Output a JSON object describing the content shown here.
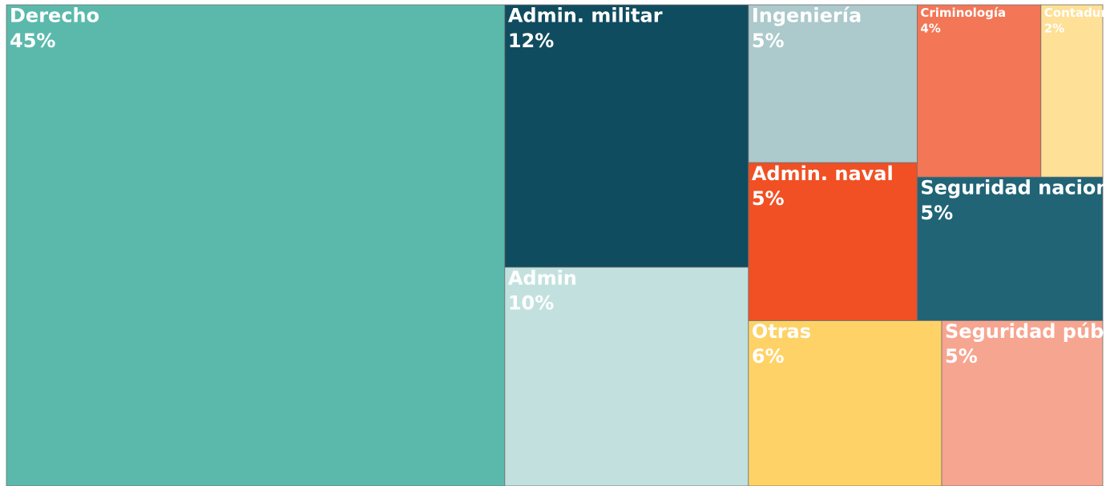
{
  "chart_data": {
    "type": "treemap",
    "categories": [
      "Derecho",
      "Admin. militar",
      "Admin",
      "Otras",
      "Seguridad pública",
      "Ingeniería",
      "Admin. naval",
      "Seguridad nacional",
      "Criminología",
      "Contaduría"
    ],
    "values": [
      45,
      12,
      10,
      6,
      5,
      5,
      5,
      5,
      4,
      2
    ],
    "value_labels": [
      "45%",
      "12%",
      "10%",
      "6%",
      "5%",
      "5%",
      "5%",
      "5%",
      "4%",
      "2%"
    ],
    "colors": [
      "#5bb9ac",
      "#104c5f",
      "#c2e1de",
      "#fed266",
      "#f6a590",
      "#acc9cb",
      "#f05024",
      "#216476",
      "#f37656",
      "#fee096"
    ]
  }
}
